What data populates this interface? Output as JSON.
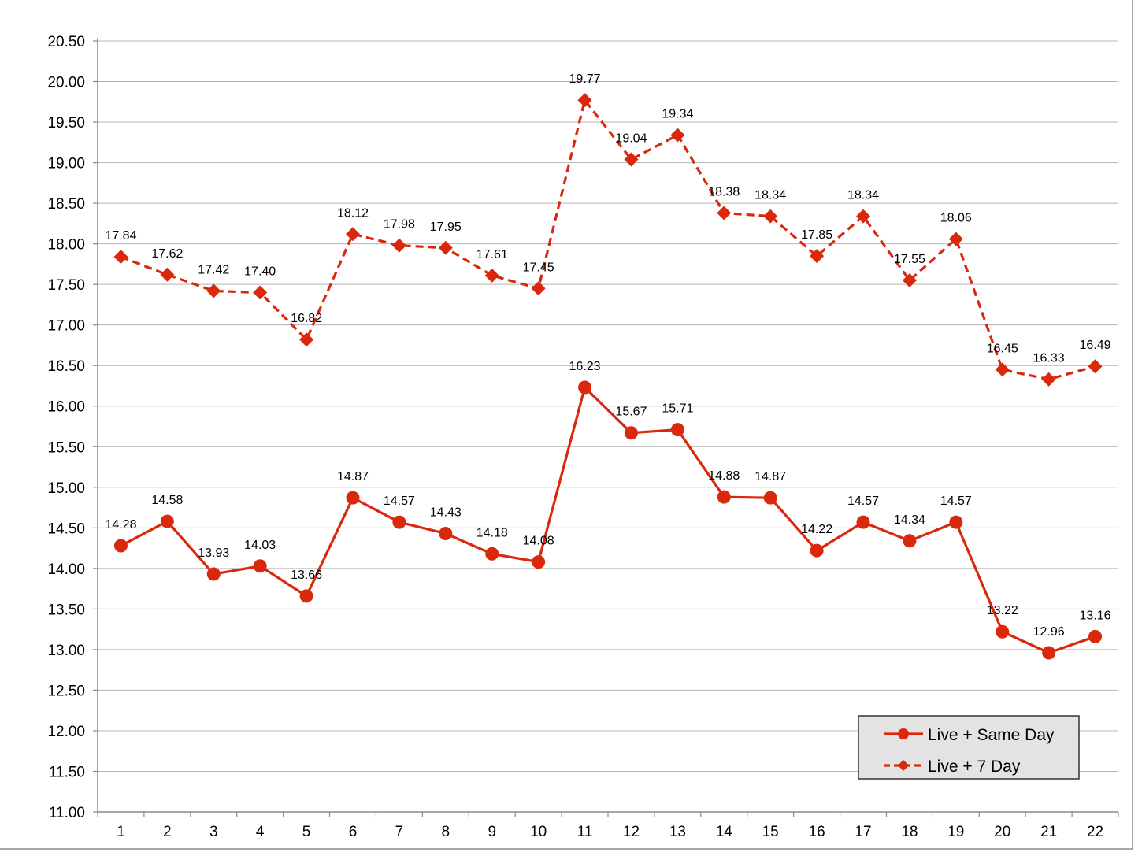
{
  "chart_data": {
    "type": "line",
    "title": "",
    "xlabel": "",
    "ylabel": "",
    "ylim": [
      11.0,
      20.5
    ],
    "ytick_step": 0.5,
    "grid": true,
    "legend_position": "bottom-right",
    "x": [
      "1",
      "2",
      "3",
      "4",
      "5",
      "6",
      "7",
      "8",
      "9",
      "10",
      "11",
      "12",
      "13",
      "14",
      "15",
      "16",
      "17",
      "18",
      "19",
      "20",
      "21",
      "22"
    ],
    "series": [
      {
        "name": "Live + Same Day",
        "marker": "circle",
        "line_style": "solid",
        "color": "#d9280c",
        "values": [
          14.28,
          14.58,
          13.93,
          14.03,
          13.66,
          14.87,
          14.57,
          14.43,
          14.18,
          14.08,
          16.23,
          15.67,
          15.71,
          14.88,
          14.87,
          14.22,
          14.57,
          14.34,
          14.57,
          13.22,
          12.96,
          13.16
        ]
      },
      {
        "name": "Live + 7 Day",
        "marker": "diamond",
        "line_style": "dashed",
        "color": "#d9280c",
        "values": [
          17.84,
          17.62,
          17.42,
          17.4,
          16.82,
          18.12,
          17.98,
          17.95,
          17.61,
          17.45,
          19.77,
          19.04,
          19.34,
          18.38,
          18.34,
          17.85,
          18.34,
          17.55,
          18.06,
          16.45,
          16.33,
          16.49
        ]
      }
    ]
  }
}
